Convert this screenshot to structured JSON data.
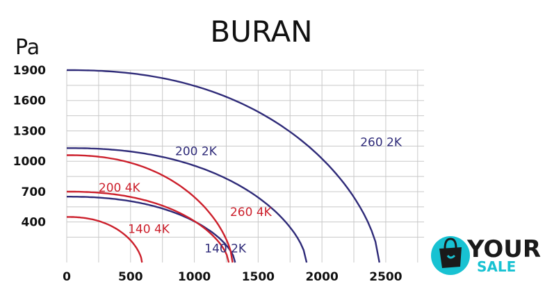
{
  "chart_data": {
    "type": "line",
    "title": "BURAN",
    "ylabel": "Pa",
    "xlabel": "",
    "xlim": [
      0,
      2800
    ],
    "ylim": [
      0,
      1900
    ],
    "x_ticks": [
      0,
      500,
      1000,
      1500,
      2000,
      2500
    ],
    "y_ticks": [
      400,
      700,
      1000,
      1300,
      1600,
      1900
    ],
    "x_tick_labels": [
      "0",
      "500",
      "1000",
      "1500",
      "2000",
      "2500"
    ],
    "y_tick_labels": [
      "400",
      "700",
      "1000",
      "1300",
      "1600",
      "1900"
    ],
    "grid": true,
    "colors": {
      "2K": "#2e2a78",
      "4K": "#cc1f2b",
      "grid": "#c8c8c8"
    },
    "series": [
      {
        "name": "260 2K",
        "color": "#2e2a78",
        "q_max": 2450,
        "p_max": 1900,
        "label_at": [
          2300,
          1150
        ]
      },
      {
        "name": "200 2K",
        "color": "#2e2a78",
        "q_max": 1880,
        "p_max": 1130,
        "label_at": [
          850,
          1060
        ]
      },
      {
        "name": "140 2K",
        "color": "#2e2a78",
        "q_max": 1320,
        "p_max": 650,
        "label_at": [
          1080,
          100
        ]
      },
      {
        "name": "260 4K",
        "color": "#cc1f2b",
        "q_max": 1300,
        "p_max": 1060,
        "label_at": [
          1280,
          460
        ]
      },
      {
        "name": "200 4K",
        "color": "#cc1f2b",
        "q_max": 1270,
        "p_max": 700,
        "label_at": [
          250,
          700
        ]
      },
      {
        "name": "140 4K",
        "color": "#cc1f2b",
        "q_max": 590,
        "p_max": 450,
        "label_at": [
          480,
          290
        ]
      }
    ]
  },
  "logo": {
    "word1": "YOUR",
    "word2": "SALE"
  }
}
